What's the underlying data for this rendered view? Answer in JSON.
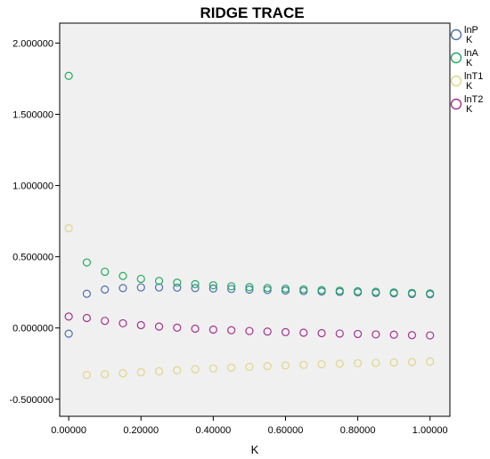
{
  "chart_data": {
    "type": "scatter",
    "title": "RIDGE TRACE",
    "xlabel": "K",
    "ylabel": "",
    "xlim": [
      -0.025,
      1.055
    ],
    "ylim": [
      -0.62,
      2.14
    ],
    "xticks": [
      0.0,
      0.2,
      0.4,
      0.6,
      0.8,
      1.0
    ],
    "xtick_labels": [
      "0.00000",
      "0.20000",
      "0.40000",
      "0.60000",
      "0.80000",
      "1.00000"
    ],
    "yticks": [
      2.0,
      1.5,
      1.0,
      0.5,
      0.0,
      -0.5
    ],
    "ytick_labels": [
      "2.000000",
      "1.500000",
      "1.000000",
      "0.500000",
      "0.000000",
      "-0.500000"
    ],
    "grid": false,
    "legend_position": "right",
    "background": "#f0f0f0",
    "x": [
      0.0,
      0.05,
      0.1,
      0.15,
      0.2,
      0.25,
      0.3,
      0.35,
      0.4,
      0.45,
      0.5,
      0.55,
      0.6,
      0.65,
      0.7,
      0.75,
      0.8,
      0.85,
      0.9,
      0.95,
      1.0
    ],
    "series": [
      {
        "name": "lnP",
        "legend_sub": "K",
        "color": "#4f6fb0",
        "values": [
          -0.04,
          0.24,
          0.27,
          0.28,
          0.285,
          0.285,
          0.283,
          0.28,
          0.277,
          0.274,
          0.27,
          0.267,
          0.263,
          0.26,
          0.256,
          0.253,
          0.25,
          0.246,
          0.243,
          0.239,
          0.236
        ]
      },
      {
        "name": "lnA",
        "legend_sub": "K",
        "color": "#1fad5f",
        "values": [
          1.77,
          0.46,
          0.395,
          0.365,
          0.345,
          0.33,
          0.318,
          0.308,
          0.3,
          0.293,
          0.287,
          0.281,
          0.276,
          0.271,
          0.266,
          0.262,
          0.258,
          0.254,
          0.25,
          0.246,
          0.243
        ]
      },
      {
        "name": "lnT1",
        "legend_sub": "K",
        "color": "#e2d48a",
        "values": [
          0.7,
          -0.33,
          -0.325,
          -0.318,
          -0.311,
          -0.304,
          -0.297,
          -0.29,
          -0.284,
          -0.278,
          -0.273,
          -0.268,
          -0.263,
          -0.259,
          -0.255,
          -0.251,
          -0.248,
          -0.245,
          -0.242,
          -0.239,
          -0.236
        ]
      },
      {
        "name": "lnT2",
        "legend_sub": "K",
        "color": "#a3338f",
        "values": [
          0.08,
          0.07,
          0.05,
          0.033,
          0.02,
          0.01,
          0.002,
          -0.005,
          -0.011,
          -0.016,
          -0.021,
          -0.025,
          -0.029,
          -0.033,
          -0.036,
          -0.039,
          -0.042,
          -0.045,
          -0.047,
          -0.05,
          -0.052
        ]
      }
    ]
  }
}
